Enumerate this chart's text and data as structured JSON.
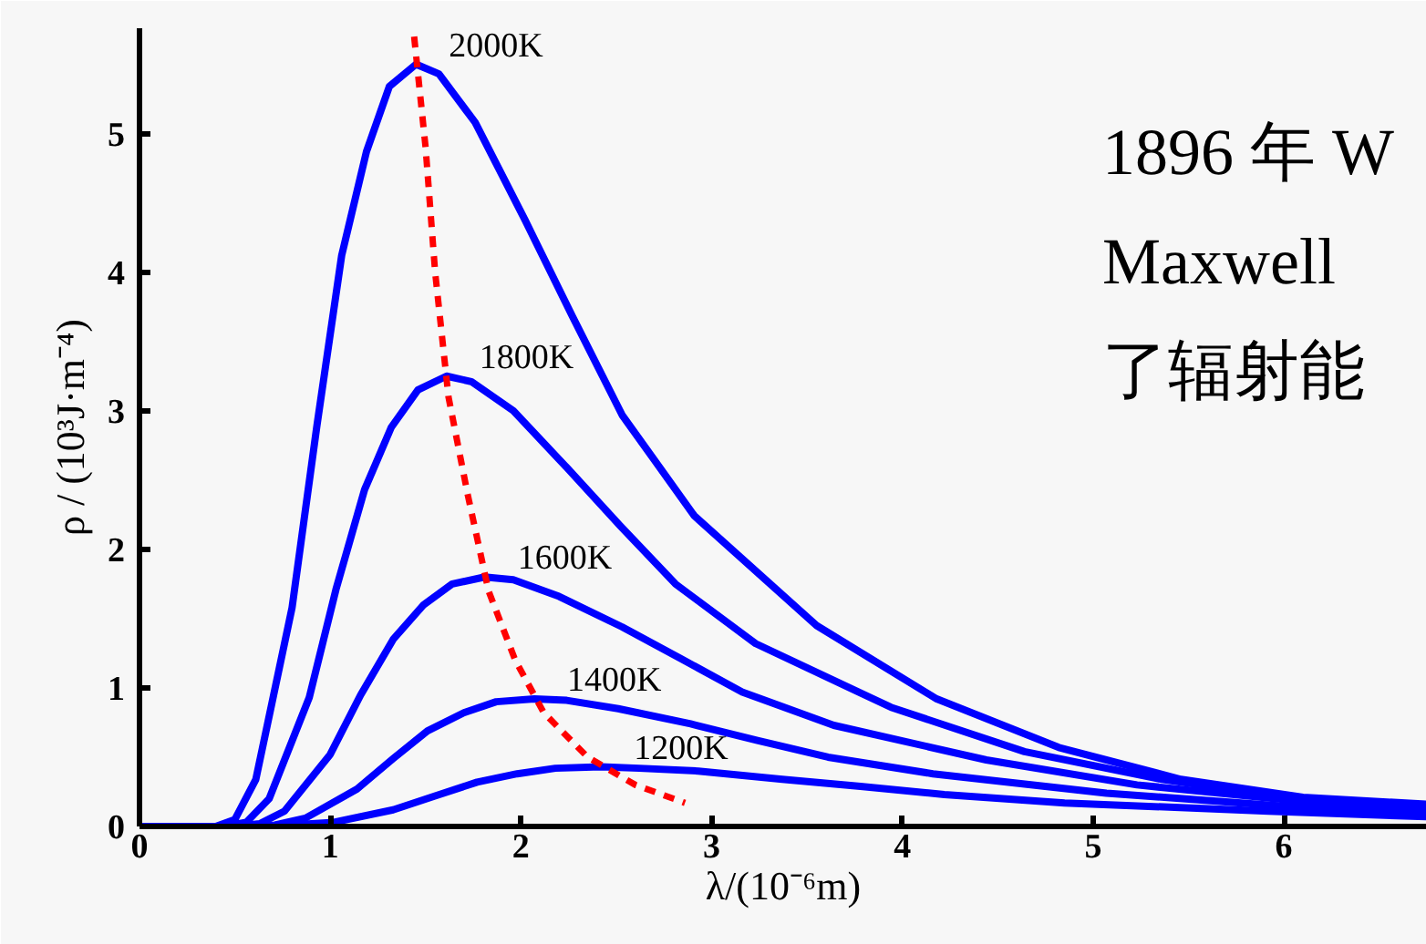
{
  "chart_data": {
    "type": "line",
    "xlabel": "λ/(10⁻⁶m)",
    "ylabel": "ρ / (10³J·m⁻⁴)",
    "xlim": [
      0,
      6.75
    ],
    "ylim": [
      0,
      5.76
    ],
    "xticks": [
      0,
      1,
      2,
      3,
      4,
      5,
      6
    ],
    "yticks": [
      0,
      1,
      2,
      3,
      4,
      5
    ],
    "grid": false,
    "legend": false,
    "marker": "none",
    "annotations": [
      "1896 年 W",
      "Maxwell",
      "了辐射能"
    ],
    "series": [
      {
        "name": "2000K",
        "color": "#0000ff",
        "line_style": "solid",
        "x": [
          0,
          0.4,
          0.5,
          0.61,
          0.8,
          0.93,
          1.06,
          1.19,
          1.31,
          1.45,
          1.57,
          1.76,
          2.02,
          2.27,
          2.53,
          2.91,
          3.55,
          4.18,
          4.82,
          5.46,
          6.1,
          6.75
        ],
        "values": [
          0,
          0,
          0.05,
          0.34,
          1.58,
          2.89,
          4.12,
          4.87,
          5.34,
          5.5,
          5.43,
          5.08,
          4.38,
          3.68,
          2.97,
          2.24,
          1.45,
          0.92,
          0.57,
          0.34,
          0.21,
          0.16
        ]
      },
      {
        "name": "1800K",
        "color": "#0000ff",
        "line_style": "solid",
        "x": [
          0.44,
          0.56,
          0.68,
          0.89,
          1.03,
          1.18,
          1.32,
          1.46,
          1.61,
          1.74,
          1.96,
          2.24,
          2.52,
          2.81,
          3.23,
          3.94,
          4.64,
          5.36,
          6.07,
          6.75
        ],
        "values": [
          0,
          0.03,
          0.2,
          0.93,
          1.71,
          2.43,
          2.88,
          3.15,
          3.25,
          3.21,
          3.0,
          2.59,
          2.17,
          1.75,
          1.32,
          0.86,
          0.54,
          0.34,
          0.2,
          0.13
        ]
      },
      {
        "name": "1600K",
        "color": "#0000ff",
        "line_style": "solid",
        "x": [
          0.5,
          0.63,
          0.76,
          1.0,
          1.16,
          1.33,
          1.49,
          1.64,
          1.81,
          1.96,
          2.2,
          2.53,
          2.84,
          3.16,
          3.64,
          4.44,
          5.23,
          6.03,
          6.75
        ],
        "values": [
          0,
          0.02,
          0.11,
          0.52,
          0.95,
          1.35,
          1.6,
          1.75,
          1.8,
          1.78,
          1.66,
          1.44,
          1.21,
          0.97,
          0.73,
          0.48,
          0.3,
          0.19,
          0.12
        ]
      },
      {
        "name": "1400K",
        "color": "#0000ff",
        "line_style": "solid",
        "x": [
          0.57,
          0.71,
          0.87,
          1.14,
          1.33,
          1.51,
          1.7,
          1.87,
          2.07,
          2.24,
          2.51,
          2.89,
          3.24,
          3.61,
          4.16,
          5.07,
          5.97,
          6.75
        ],
        "values": [
          0,
          0.01,
          0.06,
          0.27,
          0.49,
          0.69,
          0.82,
          0.9,
          0.92,
          0.91,
          0.85,
          0.74,
          0.62,
          0.5,
          0.38,
          0.24,
          0.15,
          0.1
        ]
      },
      {
        "name": "1200K",
        "color": "#0000ff",
        "line_style": "solid",
        "x": [
          0.67,
          1.02,
          1.33,
          1.55,
          1.77,
          1.98,
          2.18,
          2.42,
          2.62,
          2.93,
          3.37,
          3.78,
          4.22,
          4.85,
          5.92,
          6.75
        ],
        "values": [
          0,
          0.03,
          0.12,
          0.22,
          0.32,
          0.38,
          0.42,
          0.43,
          0.42,
          0.4,
          0.34,
          0.29,
          0.23,
          0.17,
          0.11,
          0.07
        ]
      },
      {
        "color": "#ff0000",
        "line_style": "dashed",
        "x": [
          1.44,
          1.5,
          1.55,
          1.62,
          1.72,
          1.83,
          1.97,
          2.12,
          2.35,
          2.6,
          2.86
        ],
        "values": [
          5.7,
          4.9,
          4.0,
          3.1,
          2.4,
          1.7,
          1.2,
          0.82,
          0.5,
          0.3,
          0.17
        ]
      }
    ]
  }
}
